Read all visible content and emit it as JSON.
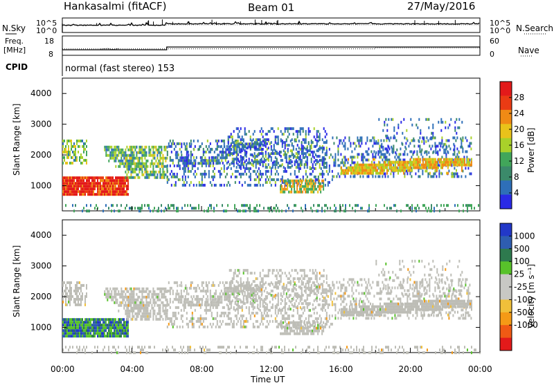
{
  "header": {
    "site": "Hankasalmi (fitACF)",
    "beam": "Beam 01",
    "date": "27/May/2016"
  },
  "side_labels": {
    "nsky": "N.Sky",
    "nsearch": "N.Search",
    "freq_line1": "Freq.",
    "freq_line2": "[MHz]",
    "nave": "Nave",
    "cpid": "CPID"
  },
  "scan_mode": "normal (fast stereo) 153",
  "colors": {
    "power": [
      "#2a2ae6",
      "#2e6fb8",
      "#3b8a6a",
      "#41a65a",
      "#a9d12a",
      "#e9c21a",
      "#f08a15",
      "#ea3b14",
      "#e31a1a"
    ],
    "velocity": [
      "#e31a1a",
      "#f05a14",
      "#f59a16",
      "#f0c03a",
      "#c8c8c4",
      "#c8c8c4",
      "#58c22a",
      "#2e7a4e",
      "#2e5db0",
      "#2238c8"
    ],
    "ground_scatter": "#bdbdb6"
  },
  "chart_data": [
    {
      "type": "line",
      "name": "noise",
      "series": [
        {
          "name": "N.Sky"
        },
        {
          "name": "N.Search"
        }
      ],
      "y_ticks": [
        "10^5",
        "10^0"
      ],
      "y_ticks_right": [
        "10^5",
        "10^0"
      ],
      "x_range": [
        "00:00",
        "24:00"
      ]
    },
    {
      "type": "line",
      "name": "frequency",
      "series": [
        {
          "name": "Freq.",
          "x": [
            "00:00",
            "06:00",
            "06:00",
            "24:00"
          ],
          "values": [
            10,
            10,
            12,
            12
          ]
        },
        {
          "name": "Nave",
          "x": [
            "00:00",
            "18:00",
            "18:00",
            "24:00"
          ],
          "values": [
            20,
            20,
            23,
            23
          ]
        }
      ],
      "y_ticks": [
        "18",
        "8"
      ],
      "y_ticks_right": [
        "60",
        "0"
      ]
    },
    {
      "type": "heatmap",
      "name": "power",
      "xlabel": "",
      "ylabel": "Slant Range [km]",
      "ylim": [
        180,
        4500
      ],
      "y_ticks": [
        "1000",
        "2000",
        "3000",
        "4000"
      ],
      "colorbar": {
        "label": "Power [dB]",
        "range": [
          0,
          32
        ],
        "ticks": [
          "4",
          "8",
          "12",
          "16",
          "20",
          "24",
          "28"
        ]
      }
    },
    {
      "type": "heatmap",
      "name": "velocity",
      "xlabel": "Time UT",
      "ylabel": "Slant Range [km]",
      "ylim": [
        180,
        4500
      ],
      "y_ticks": [
        "1000",
        "2000",
        "3000",
        "4000"
      ],
      "x_ticks": [
        "00:00",
        "04:00",
        "08:00",
        "12:00",
        "16:00",
        "20:00",
        "00:00"
      ],
      "colorbar": {
        "label": "Velocity [m s^-1]",
        "ticks": [
          "1000",
          "500",
          "100",
          "25",
          "-25",
          "-100",
          "-500",
          "-1000"
        ]
      }
    }
  ]
}
